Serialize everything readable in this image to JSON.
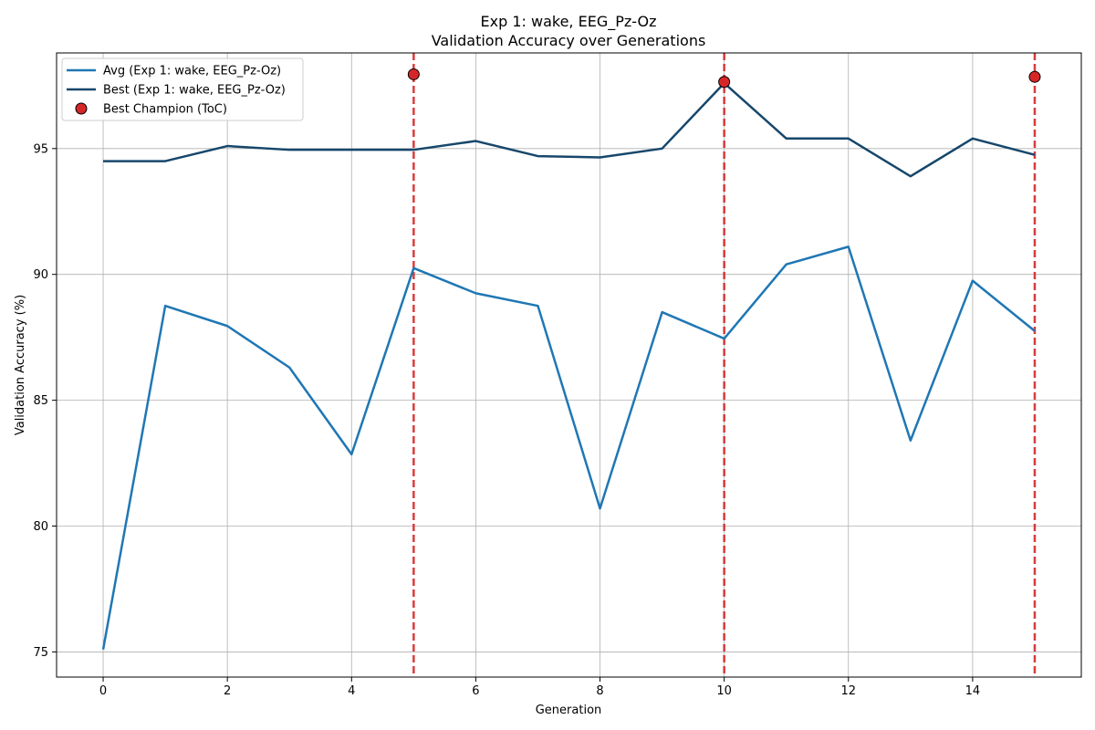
{
  "chart_data": {
    "type": "line",
    "title": "Exp 1: wake, EEG_Pz-Oz",
    "subtitle": "Validation Accuracy over Generations",
    "xlabel": "Generation",
    "ylabel": "Validation Accuracy (%)",
    "xlim": [
      -0.75,
      15.75
    ],
    "ylim": [
      74.0,
      98.8
    ],
    "xticks": [
      0,
      2,
      4,
      6,
      8,
      10,
      12,
      14
    ],
    "yticks": [
      75,
      80,
      85,
      90,
      95
    ],
    "grid": true,
    "legend_position": "top-left",
    "x": [
      0,
      1,
      2,
      3,
      4,
      5,
      6,
      7,
      8,
      9,
      10,
      11,
      12,
      13,
      14,
      15
    ],
    "series": [
      {
        "name": "Avg (Exp 1: wake, EEG_Pz-Oz)",
        "color": "#1f77b4",
        "values": [
          75.1,
          88.75,
          87.95,
          86.3,
          82.85,
          90.25,
          89.25,
          88.75,
          80.7,
          88.5,
          87.45,
          90.4,
          91.1,
          83.4,
          89.75,
          87.75
        ]
      },
      {
        "name": "Best (Exp 1: wake, EEG_Pz-Oz)",
        "color": "#17476b",
        "values": [
          94.5,
          94.5,
          95.1,
          94.95,
          94.95,
          94.95,
          95.3,
          94.7,
          94.65,
          95.0,
          97.6,
          95.4,
          95.4,
          93.9,
          95.4,
          94.75
        ]
      }
    ],
    "champions": {
      "name": "Best Champion (ToC)",
      "color": "#d62728",
      "points": [
        {
          "x": 5,
          "y": 97.95
        },
        {
          "x": 10,
          "y": 97.65
        },
        {
          "x": 15,
          "y": 97.85
        }
      ]
    },
    "vlines": {
      "color": "#d62728",
      "x": [
        5,
        10,
        15
      ]
    }
  }
}
